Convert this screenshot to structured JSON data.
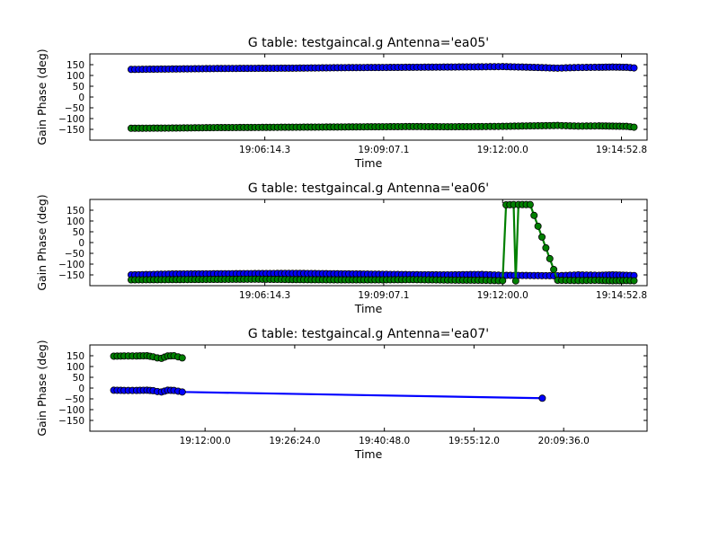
{
  "chart_data": [
    {
      "type": "line",
      "title": "G table: testgaincal.g      Antenna='ea05'",
      "xlabel": "Time",
      "ylabel": "Gain Phase (deg)",
      "xticks": [
        "19:06:14.3",
        "19:09:07.1",
        "19:12:00.0",
        "19:14:52.8"
      ],
      "yticks": [
        "150",
        "100",
        "50",
        "0",
        "−50",
        "−100",
        "−150"
      ],
      "ylim": [
        -200,
        200
      ],
      "xlim_sec": [
        68520,
        69330
      ],
      "grid": false,
      "series": [
        {
          "color": "#0000ff",
          "x_sec": [
            68580,
            68640,
            68700,
            68760,
            68820,
            68880,
            68940,
            68990,
            69040,
            69090,
            69120,
            69160,
            69200,
            69230,
            69260,
            69280,
            69300,
            69311
          ],
          "y": [
            128,
            130,
            132,
            133,
            134,
            136,
            137,
            138,
            139,
            140,
            141,
            138,
            134,
            137,
            138,
            139,
            138,
            135
          ]
        },
        {
          "color": "#008000",
          "x_sec": [
            68580,
            68640,
            68700,
            68760,
            68820,
            68880,
            68940,
            68990,
            69040,
            69090,
            69120,
            69160,
            69200,
            69230,
            69260,
            69280,
            69300,
            69311
          ],
          "y": [
            -145,
            -144,
            -142,
            -141,
            -140,
            -139,
            -138,
            -137,
            -138,
            -137,
            -136,
            -134,
            -132,
            -135,
            -134,
            -135,
            -136,
            -140
          ]
        }
      ]
    },
    {
      "type": "line",
      "title": "G table: testgaincal.g      Antenna='ea06'",
      "xlabel": "Time",
      "ylabel": "Gain Phase (deg)",
      "xticks": [
        "19:06:14.3",
        "19:09:07.1",
        "19:12:00.0",
        "19:14:52.8"
      ],
      "yticks": [
        "150",
        "100",
        "50",
        "0",
        "−50",
        "−100",
        "−150"
      ],
      "ylim": [
        -200,
        200
      ],
      "xlim_sec": [
        68520,
        69330
      ],
      "grid": false,
      "series": [
        {
          "color": "#0000ff",
          "x_sec": [
            68580,
            68640,
            68700,
            68760,
            68820,
            68880,
            68940,
            68990,
            69040,
            69090,
            69120,
            69160,
            69200,
            69230,
            69260,
            69280,
            69300,
            69311
          ],
          "y": [
            -150,
            -146,
            -145,
            -144,
            -143,
            -145,
            -147,
            -149,
            -150,
            -148,
            -152,
            -153,
            -154,
            -150,
            -152,
            -150,
            -152,
            -153
          ]
        },
        {
          "color": "#008000",
          "x_sec": [
            68580,
            68640,
            68700,
            68760,
            68820,
            68880,
            68940,
            68990,
            69040,
            69090,
            69120,
            69125,
            69136,
            69139,
            69143,
            69160,
            69200,
            69230,
            69260,
            69280,
            69300,
            69311
          ],
          "y": [
            -173,
            -172,
            -171,
            -170,
            -172,
            -173,
            -173,
            -172,
            -174,
            -175,
            -177,
            175,
            176,
            -178,
            176,
            176,
            -175,
            -176,
            -175,
            -177,
            -176,
            -177
          ]
        }
      ]
    },
    {
      "type": "line",
      "title": "G table: testgaincal.g      Antenna='ea07'",
      "xlabel": "Time",
      "ylabel": "Gain Phase (deg)",
      "xticks": [
        "19:12:00.0",
        "19:26:24.0",
        "19:40:48.0",
        "19:55:12.0",
        "20:09:36.0"
      ],
      "yticks": [
        "150",
        "100",
        "50",
        "0",
        "−50",
        "−100",
        "−150"
      ],
      "ylim": [
        -200,
        200
      ],
      "xlim_sec": [
        68010,
        73380
      ],
      "grid": false,
      "series": [
        {
          "color": "#0000ff",
          "x_sec": [
            68240,
            68340,
            68460,
            68560,
            68620,
            68660,
            68700,
            68760,
            68820,
            68900,
            72370
          ],
          "y": [
            -10,
            -11,
            -11,
            -10,
            -12,
            -16,
            -18,
            -10,
            -11,
            -18,
            -47
          ]
        },
        {
          "color": "#008000",
          "x_sec": [
            68240,
            68340,
            68460,
            68560,
            68620,
            68660,
            68700,
            68760,
            68820,
            68900
          ],
          "y": [
            148,
            149,
            149,
            150,
            145,
            140,
            138,
            149,
            150,
            140
          ]
        }
      ]
    }
  ]
}
